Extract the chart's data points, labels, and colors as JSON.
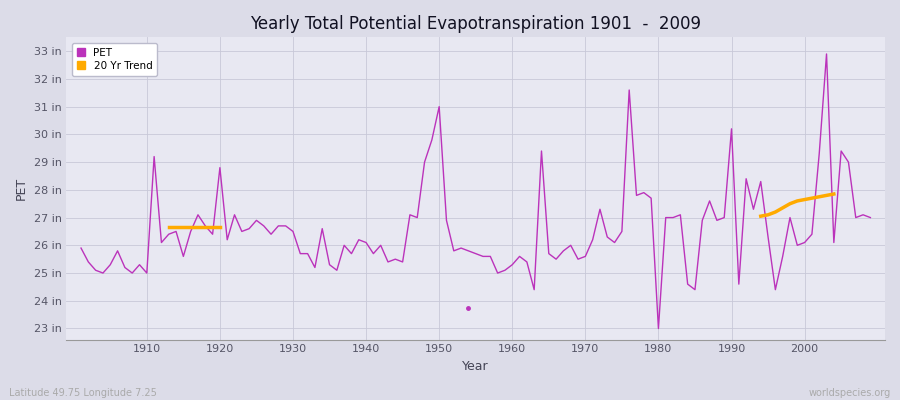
{
  "title": "Yearly Total Potential Evapotranspiration 1901  -  2009",
  "xlabel": "Year",
  "ylabel": "PET",
  "bottom_left": "Latitude 49.75 Longitude 7.25",
  "bottom_right": "worldspecies.org",
  "ylim": [
    22.6,
    33.5
  ],
  "xlim": [
    1899,
    2011
  ],
  "pet_color": "#bb33bb",
  "trend_color": "#ffaa00",
  "bg_outer": "#dcdce8",
  "bg_inner": "#e8e8f2",
  "grid_color": "#c8c8d8",
  "years": [
    1901,
    1902,
    1903,
    1904,
    1905,
    1906,
    1907,
    1908,
    1909,
    1910,
    1911,
    1912,
    1913,
    1914,
    1915,
    1916,
    1917,
    1918,
    1919,
    1920,
    1921,
    1922,
    1923,
    1924,
    1925,
    1926,
    1927,
    1928,
    1929,
    1930,
    1931,
    1932,
    1933,
    1934,
    1935,
    1936,
    1937,
    1938,
    1939,
    1940,
    1941,
    1942,
    1943,
    1944,
    1945,
    1946,
    1947,
    1948,
    1949,
    1950,
    1951,
    1952,
    1953,
    1955,
    1956,
    1957,
    1958,
    1959,
    1960,
    1961,
    1962,
    1963,
    1964,
    1965,
    1966,
    1967,
    1968,
    1969,
    1970,
    1971,
    1972,
    1973,
    1974,
    1975,
    1976,
    1977,
    1978,
    1979,
    1980,
    1981,
    1982,
    1983,
    1984,
    1985,
    1986,
    1987,
    1988,
    1989,
    1990,
    1991,
    1992,
    1993,
    1994,
    1995,
    1996,
    1997,
    1998,
    1999,
    2000,
    2001,
    2002,
    2003,
    2004,
    2005,
    2006,
    2007,
    2008,
    2009
  ],
  "pet": [
    25.9,
    25.4,
    25.1,
    25.0,
    25.3,
    25.8,
    25.2,
    25.0,
    25.3,
    25.0,
    29.2,
    26.1,
    26.4,
    26.5,
    25.6,
    26.5,
    27.1,
    26.7,
    26.4,
    28.8,
    26.2,
    27.1,
    26.5,
    26.6,
    26.9,
    26.7,
    26.4,
    26.7,
    26.7,
    26.5,
    25.7,
    25.7,
    25.2,
    26.6,
    25.3,
    25.1,
    26.0,
    25.7,
    26.2,
    26.1,
    25.7,
    26.0,
    25.4,
    25.5,
    25.4,
    27.1,
    27.0,
    29.0,
    29.8,
    31.0,
    26.9,
    25.8,
    25.9,
    25.7,
    25.6,
    25.6,
    25.0,
    25.1,
    25.3,
    25.6,
    25.4,
    24.4,
    29.4,
    25.7,
    25.5,
    25.8,
    26.0,
    25.5,
    25.6,
    26.2,
    27.3,
    26.3,
    26.1,
    26.5,
    31.6,
    27.8,
    27.9,
    27.7,
    23.0,
    27.0,
    27.0,
    27.1,
    24.6,
    24.4,
    26.9,
    27.6,
    26.9,
    27.0,
    30.2,
    24.6,
    28.4,
    27.3,
    28.3,
    26.3,
    24.4,
    25.6,
    27.0,
    26.0,
    26.1,
    26.4,
    29.3,
    32.9,
    26.1,
    29.4,
    29.0,
    27.0,
    27.1,
    27.0
  ],
  "dot_year": 1954,
  "dot_value": 23.75,
  "trend_seg1_years": [
    1913,
    1914,
    1915,
    1916,
    1917,
    1918,
    1919,
    1920
  ],
  "trend_seg1_values": [
    26.65,
    26.65,
    26.65,
    26.65,
    26.65,
    26.65,
    26.65,
    26.65
  ],
  "trend_seg2_years": [
    1994,
    1995,
    1996,
    1997,
    1998,
    1999,
    2000,
    2001,
    2002,
    2003,
    2004
  ],
  "trend_seg2_values": [
    27.05,
    27.1,
    27.2,
    27.35,
    27.5,
    27.6,
    27.65,
    27.7,
    27.75,
    27.8,
    27.85
  ]
}
